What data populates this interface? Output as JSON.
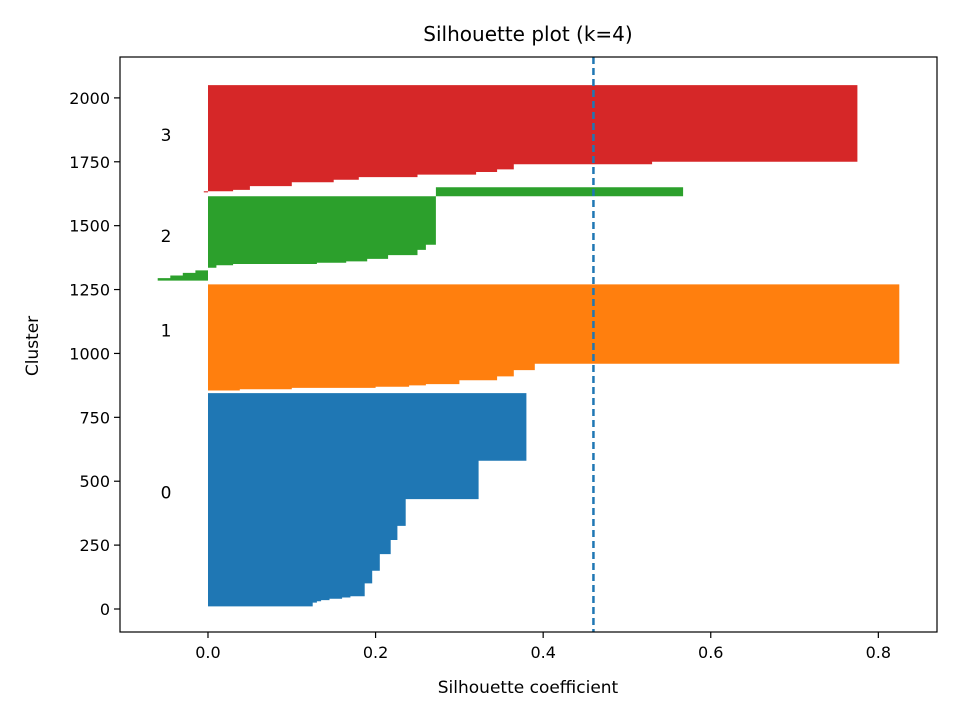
{
  "chart_data": {
    "type": "silhouette",
    "title": "Silhouette plot (k=4)",
    "xlabel": "Silhouette coefficient",
    "ylabel": "Cluster",
    "xlim": [
      -0.105,
      0.87
    ],
    "ylim": [
      -90,
      2160
    ],
    "xticks": [
      0.0,
      0.2,
      0.4,
      0.6,
      0.8
    ],
    "xtick_labels": [
      "0.0",
      "0.2",
      "0.4",
      "0.6",
      "0.8"
    ],
    "yticks": [
      0,
      250,
      500,
      750,
      1000,
      1250,
      1500,
      1750,
      2000
    ],
    "ytick_labels": [
      "0",
      "250",
      "500",
      "750",
      "1000",
      "1250",
      "1500",
      "1750",
      "2000"
    ],
    "average_silhouette": 0.46,
    "average_line_color": "#1f77b4",
    "grid": false,
    "clusters": [
      {
        "label": "0",
        "label_x": -0.05,
        "label_y": 455,
        "color": "#1f77b4",
        "profile": [
          [
            10,
            0.125
          ],
          [
            15,
            0.125
          ],
          [
            20,
            0.125
          ],
          [
            25,
            0.13
          ],
          [
            30,
            0.135
          ],
          [
            35,
            0.145
          ],
          [
            40,
            0.16
          ],
          [
            45,
            0.17
          ],
          [
            50,
            0.187
          ],
          [
            100,
            0.196
          ],
          [
            150,
            0.205
          ],
          [
            215,
            0.218
          ],
          [
            270,
            0.226
          ],
          [
            325,
            0.236
          ],
          [
            430,
            0.323
          ],
          [
            580,
            0.38
          ],
          [
            845,
            0.38
          ]
        ]
      },
      {
        "label": "1",
        "label_x": -0.05,
        "label_y": 1090,
        "color": "#ff7f0e",
        "profile": [
          [
            855,
            0.038
          ],
          [
            860,
            0.1
          ],
          [
            865,
            0.2
          ],
          [
            870,
            0.24
          ],
          [
            875,
            0.26
          ],
          [
            880,
            0.3
          ],
          [
            895,
            0.345
          ],
          [
            910,
            0.365
          ],
          [
            935,
            0.39
          ],
          [
            960,
            0.825
          ],
          [
            1270,
            0.825
          ]
        ]
      },
      {
        "label": "2",
        "label_x": -0.05,
        "label_y": 1460,
        "color": "#2ca02c",
        "profile": [
          [
            1285,
            -0.06
          ],
          [
            1295,
            -0.045
          ],
          [
            1305,
            -0.03
          ],
          [
            1315,
            -0.015
          ],
          [
            1325,
            0.0
          ],
          [
            1335,
            0.01
          ],
          [
            1345,
            0.03
          ],
          [
            1350,
            0.13
          ],
          [
            1355,
            0.165
          ],
          [
            1360,
            0.19
          ],
          [
            1370,
            0.215
          ],
          [
            1385,
            0.25
          ],
          [
            1405,
            0.26
          ],
          [
            1425,
            0.272
          ],
          [
            1440,
            0.272
          ],
          [
            1650,
            0.567
          ],
          [
            1615,
            0.567
          ]
        ]
      },
      {
        "label": "3",
        "label_x": -0.05,
        "label_y": 1855,
        "color": "#d62728",
        "profile": [
          [
            1630,
            -0.005
          ],
          [
            1635,
            0.03
          ],
          [
            1640,
            0.05
          ],
          [
            1655,
            0.1
          ],
          [
            1670,
            0.15
          ],
          [
            1680,
            0.18
          ],
          [
            1690,
            0.25
          ],
          [
            1700,
            0.32
          ],
          [
            1710,
            0.345
          ],
          [
            1720,
            0.365
          ],
          [
            1740,
            0.53
          ],
          [
            1750,
            0.775
          ],
          [
            2050,
            0.775
          ]
        ]
      }
    ]
  }
}
